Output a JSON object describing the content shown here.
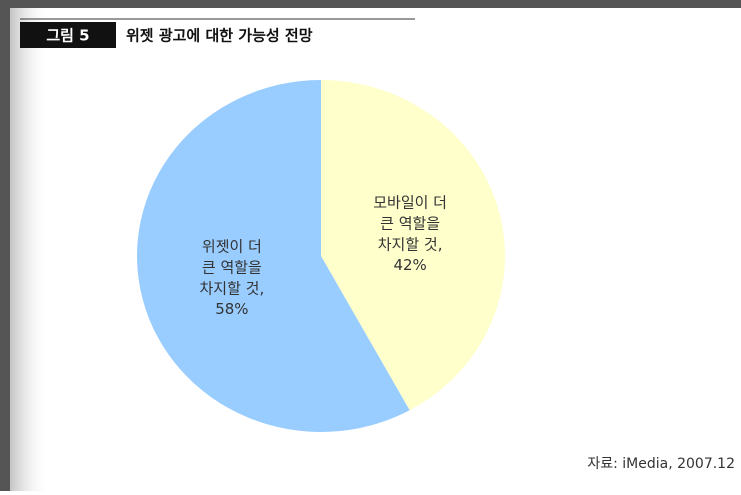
{
  "chart_data": {
    "type": "pie",
    "figure_label": "그림 5",
    "title": "위젯 광고에 대한 가능성 전망",
    "categories": [
      "모바일이 더 큰 역할을 차지할 것,",
      "위젯이 더 큰 역할을 차지할 것,"
    ],
    "values": [
      42,
      58
    ],
    "value_labels": [
      "42%",
      "58%"
    ],
    "colors": [
      "#ffffcc",
      "#99ccff"
    ],
    "source": "자료: iMedia, 2007.12"
  }
}
